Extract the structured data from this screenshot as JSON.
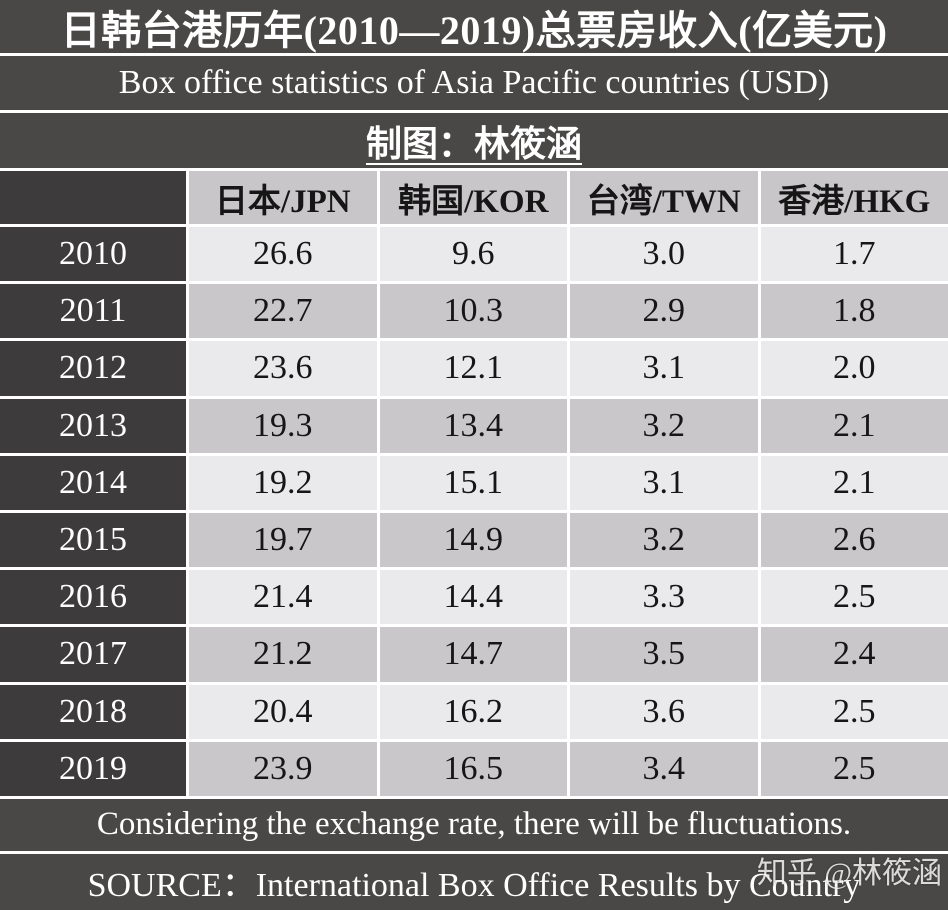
{
  "title": "日韩台港历年(2010—2019)总票房收入(亿美元)",
  "subtitle": "Box office statistics of Asia Pacific countries (USD)",
  "credit": "制图：林筱涵",
  "table": {
    "columns": [
      "日本/JPN",
      "韩国/KOR",
      "台湾/TWN",
      "香港/HKG"
    ],
    "rows": [
      {
        "year": "2010",
        "values": [
          "26.6",
          "9.6",
          "3.0",
          "1.7"
        ]
      },
      {
        "year": "2011",
        "values": [
          "22.7",
          "10.3",
          "2.9",
          "1.8"
        ]
      },
      {
        "year": "2012",
        "values": [
          "23.6",
          "12.1",
          "3.1",
          "2.0"
        ]
      },
      {
        "year": "2013",
        "values": [
          "19.3",
          "13.4",
          "3.2",
          "2.1"
        ]
      },
      {
        "year": "2014",
        "values": [
          "19.2",
          "15.1",
          "3.1",
          "2.1"
        ]
      },
      {
        "year": "2015",
        "values": [
          "19.7",
          "14.9",
          "3.2",
          "2.6"
        ]
      },
      {
        "year": "2016",
        "values": [
          "21.4",
          "14.4",
          "3.3",
          "2.5"
        ]
      },
      {
        "year": "2017",
        "values": [
          "21.2",
          "14.7",
          "3.5",
          "2.4"
        ]
      },
      {
        "year": "2018",
        "values": [
          "20.4",
          "16.2",
          "3.6",
          "2.5"
        ]
      },
      {
        "year": "2019",
        "values": [
          "23.9",
          "16.5",
          "3.4",
          "2.5"
        ]
      }
    ]
  },
  "notes": {
    "exchange_note": "Considering the exchange rate, there will be fluctuations.",
    "source": "SOURCE：International Box Office Results by Country"
  },
  "watermark": "知乎 @林筱涵",
  "colors": {
    "banner_bg": "#4a4847",
    "year_bg": "#3d3b3c",
    "header_cell_bg": "#c9c6ca",
    "row_light_bg": "#eae9ec",
    "row_dark_bg": "#cac7cb",
    "separator": "#ffffff",
    "text_light": "#ffffff",
    "text_dark": "#161616"
  },
  "chart_data": {
    "type": "table",
    "title": "日韩台港历年(2010—2019)总票房收入(亿美元)",
    "subtitle": "Box office statistics of Asia Pacific countries (USD)",
    "categories": [
      "2010",
      "2011",
      "2012",
      "2013",
      "2014",
      "2015",
      "2016",
      "2017",
      "2018",
      "2019"
    ],
    "series": [
      {
        "name": "日本/JPN",
        "values": [
          26.6,
          22.7,
          23.6,
          19.3,
          19.2,
          19.7,
          21.4,
          21.2,
          20.4,
          23.9
        ]
      },
      {
        "name": "韩国/KOR",
        "values": [
          9.6,
          10.3,
          12.1,
          13.4,
          15.1,
          14.9,
          14.4,
          14.7,
          16.2,
          16.5
        ]
      },
      {
        "name": "台湾/TWN",
        "values": [
          3.0,
          2.9,
          3.1,
          3.2,
          3.1,
          3.2,
          3.3,
          3.5,
          3.6,
          3.4
        ]
      },
      {
        "name": "香港/HKG",
        "values": [
          1.7,
          1.8,
          2.0,
          2.1,
          2.1,
          2.6,
          2.5,
          2.4,
          2.5,
          2.5
        ]
      }
    ],
    "unit": "亿美元 (hundred million USD)",
    "notes": [
      "Considering the exchange rate, there will be fluctuations.",
      "SOURCE：International Box Office Results by Country"
    ]
  }
}
